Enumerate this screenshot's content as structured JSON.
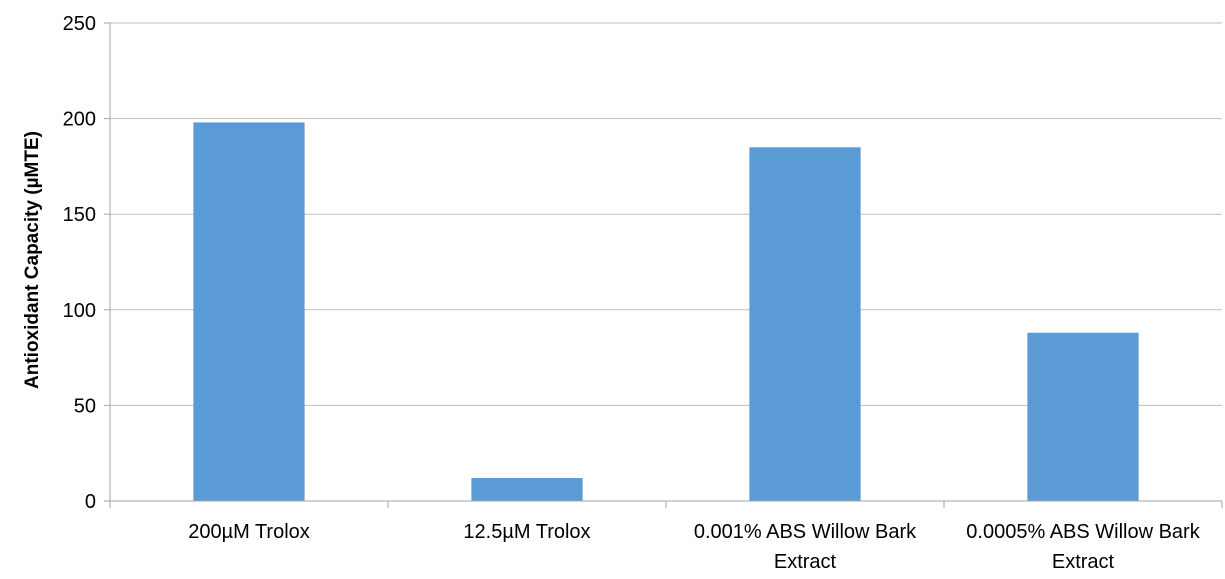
{
  "chart_data": {
    "type": "bar",
    "title": "",
    "xlabel": "",
    "ylabel": "Antioxidant Capacity (µMTE)",
    "categories": [
      [
        "200µM Trolox"
      ],
      [
        "12.5µM Trolox"
      ],
      [
        "0.001% ABS Willow Bark",
        "Extract"
      ],
      [
        "0.0005% ABS Willow Bark",
        "Extract"
      ]
    ],
    "values": [
      198,
      12,
      185,
      88
    ],
    "ylim": [
      0,
      250
    ],
    "yticks": [
      0,
      50,
      100,
      150,
      200,
      250
    ],
    "grid": true,
    "legend": "none",
    "colors": {
      "bar": "#5B9BD5",
      "grid": "#BFBFBF",
      "axis": "#A6A6A6"
    }
  }
}
